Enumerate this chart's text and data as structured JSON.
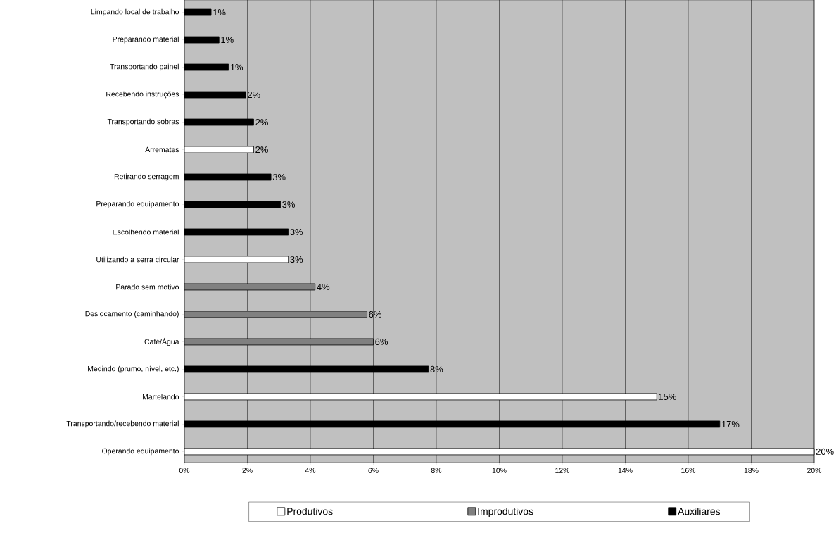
{
  "chart_data": {
    "type": "bar",
    "orientation": "horizontal",
    "categories": [
      "Limpando local de trabalho",
      "Preparando material",
      "Transportando painel",
      "Recebendo instruções",
      "Transportando sobras",
      "Arremates",
      "Retirando serragem",
      "Preparando equipamento",
      "Escolhendo material",
      "Utilizando a serra circular",
      "Parado sem motivo",
      "Deslocamento (caminhando)",
      "Café/Água",
      "Medindo (prumo, nível, etc.)",
      "Martelando",
      "Transportando/recebendo material",
      "Operando equipamento"
    ],
    "series": [
      {
        "name": "Produtivos",
        "color": "#ffffff",
        "values": [
          null,
          null,
          null,
          null,
          null,
          2.2,
          null,
          null,
          null,
          3.3,
          null,
          null,
          null,
          null,
          15.0,
          null,
          20.0
        ],
        "value_labels": [
          null,
          null,
          null,
          null,
          null,
          "2%",
          null,
          null,
          null,
          "3%",
          null,
          null,
          null,
          null,
          "15%",
          null,
          "20%"
        ]
      },
      {
        "name": "Improdutivos",
        "color": "#808080",
        "values": [
          null,
          null,
          null,
          null,
          null,
          null,
          null,
          null,
          null,
          null,
          4.15,
          5.8,
          6.0,
          null,
          null,
          null,
          null
        ],
        "value_labels": [
          null,
          null,
          null,
          null,
          null,
          null,
          null,
          null,
          null,
          null,
          "4%",
          "6%",
          "6%",
          null,
          null,
          null,
          null
        ]
      },
      {
        "name": "Auxiliares",
        "color": "#000000",
        "values": [
          0.85,
          1.1,
          1.4,
          1.95,
          2.2,
          null,
          2.75,
          3.05,
          3.3,
          null,
          null,
          null,
          null,
          7.75,
          null,
          17.0,
          null
        ],
        "value_labels": [
          "1%",
          "1%",
          "1%",
          "2%",
          "2%",
          null,
          "3%",
          "3%",
          "3%",
          null,
          null,
          null,
          null,
          "8%",
          null,
          "17%",
          null
        ]
      }
    ],
    "xlim": [
      0,
      20
    ],
    "xticks": [
      {
        "value": 0,
        "label": "0%"
      },
      {
        "value": 2,
        "label": "2%"
      },
      {
        "value": 4,
        "label": "4%"
      },
      {
        "value": 6,
        "label": "6%"
      },
      {
        "value": 8,
        "label": "8%"
      },
      {
        "value": 10,
        "label": "10%"
      },
      {
        "value": 12,
        "label": "12%"
      },
      {
        "value": 14,
        "label": "14%"
      },
      {
        "value": 16,
        "label": "16%"
      },
      {
        "value": 18,
        "label": "18%"
      },
      {
        "value": 20,
        "label": "20%"
      }
    ],
    "grid": "x",
    "legend": "bottom"
  }
}
